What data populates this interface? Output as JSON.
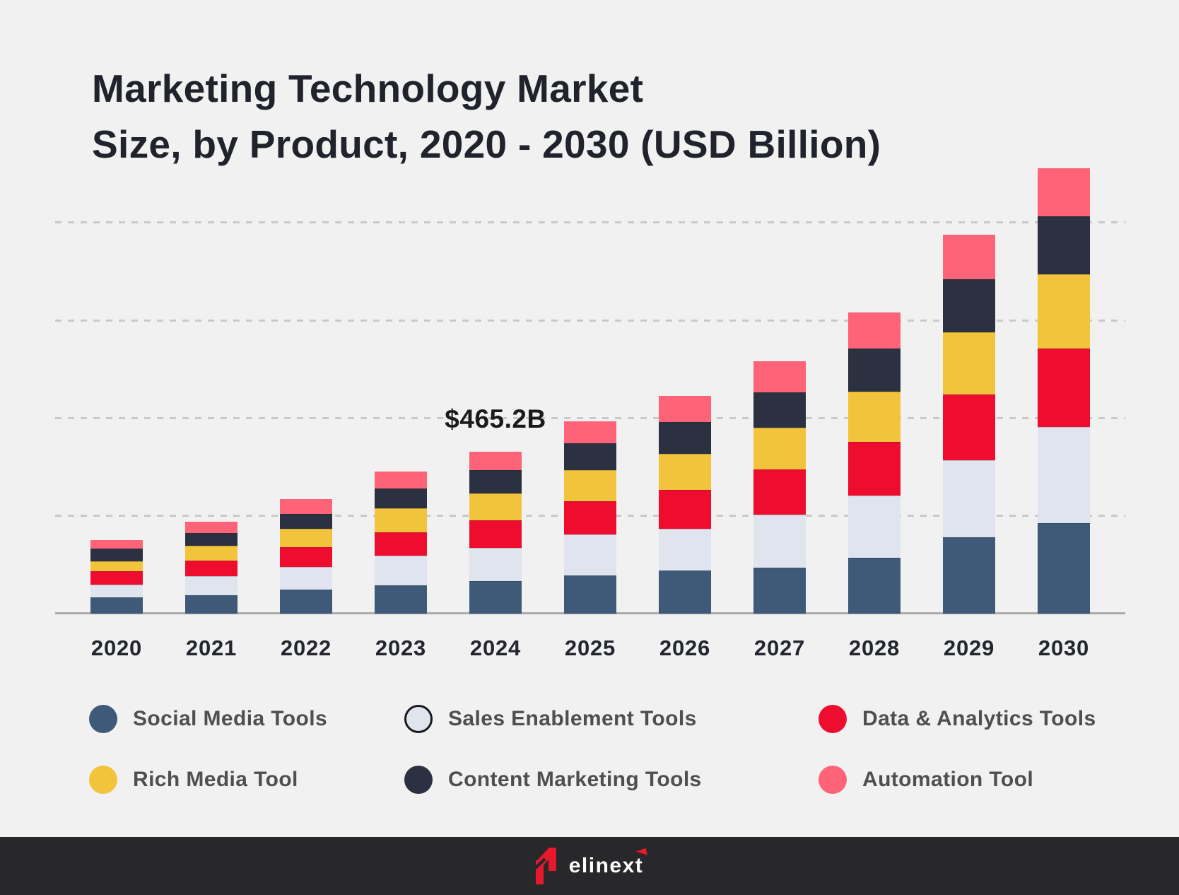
{
  "title": {
    "line1": "Marketing Technology Market",
    "line2": "Size, by Product, 2020 - 2030 (USD Billion)"
  },
  "chart_data": {
    "type": "bar",
    "stacked": true,
    "unit": "USD Billion",
    "title": "Marketing Technology Market Size, by Product, 2020 - 2030 (USD Billion)",
    "xlabel": "",
    "ylabel": "",
    "y_axis_labels_visible": false,
    "grid": "horizontal-dashed",
    "gridline_count": 4,
    "legend_position": "bottom",
    "ylim": [
      0,
      1300
    ],
    "categories": [
      "2020",
      "2021",
      "2022",
      "2023",
      "2024",
      "2025",
      "2026",
      "2027",
      "2028",
      "2029",
      "2030"
    ],
    "series": [
      {
        "name": "Social Media Tools",
        "color": "#3E5A78",
        "values": [
          47,
          53,
          69,
          81,
          93,
          110,
          124,
          132,
          160,
          219,
          260
        ]
      },
      {
        "name": "Sales Enablement Tools",
        "color": "#DFE4EE",
        "values": [
          37,
          55,
          65,
          85,
          96,
          118,
          120,
          152,
          179,
          221,
          276
        ]
      },
      {
        "name": "Data & Analytics Tools",
        "color": "#EE0D2F",
        "values": [
          37,
          45,
          57,
          67,
          79,
          95,
          112,
          130,
          154,
          189,
          226
        ]
      },
      {
        "name": "Rich Media Tool",
        "color": "#F2C43C",
        "values": [
          30,
          43,
          53,
          69,
          77,
          89,
          104,
          120,
          144,
          179,
          213
        ]
      },
      {
        "name": "Content Marketing Tools",
        "color": "#2B3140",
        "values": [
          35,
          35,
          43,
          57,
          67,
          77,
          91,
          102,
          124,
          152,
          167
        ]
      },
      {
        "name": "Automation Tool",
        "color": "#FE6378",
        "values": [
          26,
          33,
          43,
          49,
          53,
          63,
          75,
          89,
          104,
          128,
          138
        ]
      }
    ],
    "totals_estimated": [
      212,
      264,
      330,
      408,
      465,
      552,
      626,
      725,
      865,
      1088,
      1280
    ],
    "annotation": {
      "text": "$465.2B",
      "category": "2024"
    }
  },
  "legend": {
    "items": [
      {
        "label": "Social Media Tools",
        "color": "#3E5A78",
        "outlined": false
      },
      {
        "label": "Sales Enablement Tools",
        "color": "#DFE4EE",
        "outlined": true
      },
      {
        "label": "Data & Analytics Tools",
        "color": "#EE0D2F",
        "outlined": false
      },
      {
        "label": "Rich Media Tool",
        "color": "#F2C43C",
        "outlined": false
      },
      {
        "label": "Content Marketing Tools",
        "color": "#2B3140",
        "outlined": false
      },
      {
        "label": "Automation Tool",
        "color": "#FE6378",
        "outlined": false
      }
    ]
  },
  "footer": {
    "brand": "elinext"
  },
  "colors": {
    "background": "#F1F1F1",
    "title_text": "#20232B",
    "axis_line": "#ABABAB",
    "gridline": "#C9C9C9",
    "year_label_text": "#23262E",
    "legend_text": "#4F4F4F",
    "annotation_text": "#1B1B1B",
    "footer_background": "#28282B",
    "logo_red": "#E8192C",
    "logo_text": "#FFFFFF"
  }
}
